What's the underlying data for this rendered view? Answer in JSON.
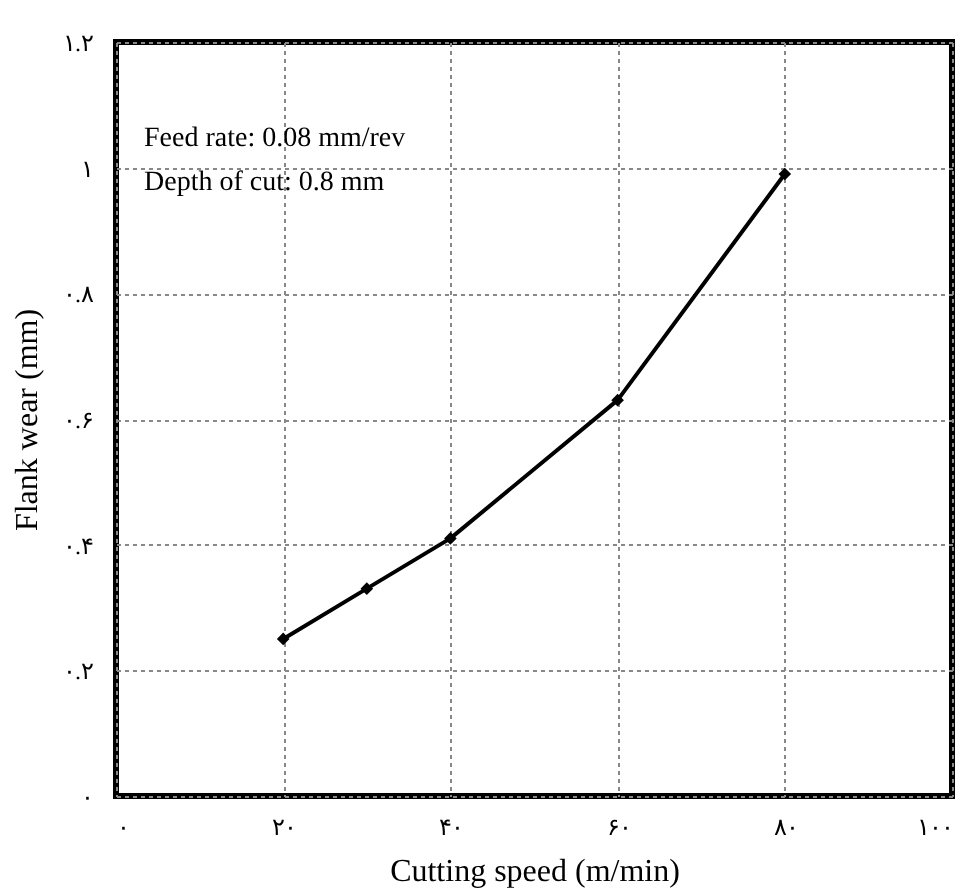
{
  "chart_data": {
    "type": "line",
    "xlabel": "Cutting speed (m/min)",
    "ylabel": "Flank wear (mm)",
    "annotations": [
      "Feed rate: 0.08 mm/rev",
      "Depth of cut: 0.8 mm"
    ],
    "x": [
      20,
      30,
      40,
      60,
      80
    ],
    "series": [
      {
        "color": "#000000",
        "values": [
          0.25,
          0.33,
          0.41,
          0.63,
          0.99
        ]
      }
    ],
    "xlim": [
      0,
      100
    ],
    "xticks": [
      {
        "value": 0,
        "label": "۰"
      },
      {
        "value": 20,
        "label": "۲۰"
      },
      {
        "value": 40,
        "label": "۴۰"
      },
      {
        "value": 60,
        "label": "۶۰"
      },
      {
        "value": 80,
        "label": "۸۰"
      },
      {
        "value": 100,
        "label": "۱۰۰"
      }
    ],
    "ylim": [
      0,
      1.2
    ],
    "yticks": [
      {
        "value": 0,
        "label": "۰"
      },
      {
        "value": 0.2,
        "label": "۰.۲"
      },
      {
        "value": 0.4,
        "label": "۰.۴"
      },
      {
        "value": 0.6,
        "label": "۰.۶"
      },
      {
        "value": 0.8,
        "label": "۰.۸"
      },
      {
        "value": 1,
        "label": "۱"
      },
      {
        "value": 1.2,
        "label": "۱.۲"
      }
    ],
    "grid": true,
    "marker": "diamond",
    "line_style": "solid"
  }
}
